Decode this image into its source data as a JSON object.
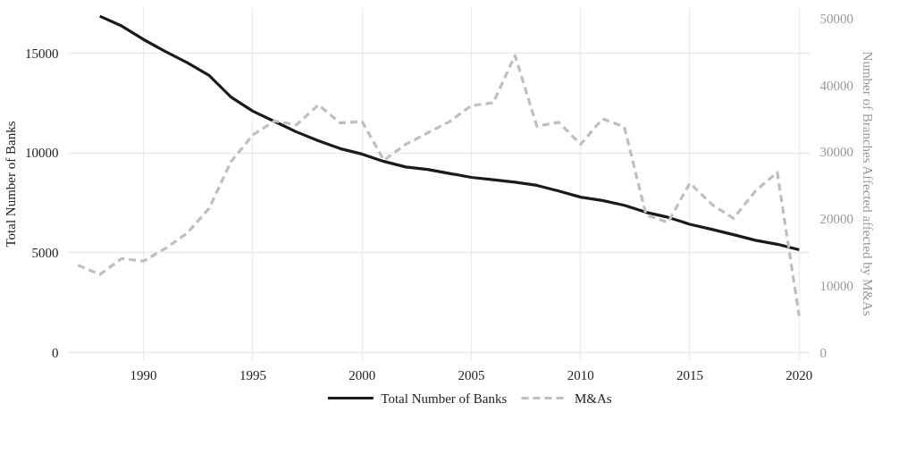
{
  "chart_data": {
    "type": "line",
    "ylabel": "Total Number of Banks",
    "y2label": "Number of Branches Affected affected by M&As",
    "xlim": [
      1986.56,
      2020.5
    ],
    "xticks": [
      1990,
      1995,
      2000,
      2005,
      2010,
      2015,
      2020
    ],
    "ylim": [
      -400,
      17290
    ],
    "yticks": [
      0,
      5000,
      10000,
      15000
    ],
    "y2lim": [
      -1190,
      51670
    ],
    "y2ticks": [
      0,
      10000,
      20000,
      30000,
      40000,
      50000
    ],
    "grid": true,
    "legend": "bottom",
    "series": [
      {
        "name": "Total Number of Banks",
        "color": "#1a1a1a",
        "line_style": "solid",
        "x": [
          1988,
          1989,
          1990,
          1991,
          1992,
          1993,
          1994,
          1995,
          1996,
          1997,
          1998,
          1999,
          2000,
          2001,
          2002,
          2003,
          2004,
          2005,
          2006,
          2007,
          2008,
          2009,
          2010,
          2011,
          2012,
          2013,
          2014,
          2015,
          2016,
          2017,
          2018,
          2019,
          2020
        ],
        "values": [
          16860,
          16370,
          15690,
          15090,
          14530,
          13890,
          12810,
          12100,
          11580,
          11060,
          10620,
          10220,
          9950,
          9580,
          9300,
          9180,
          8980,
          8780,
          8660,
          8540,
          8380,
          8100,
          7790,
          7620,
          7380,
          7030,
          6780,
          6430,
          6180,
          5910,
          5630,
          5430,
          5150
        ]
      },
      {
        "name": "M&As",
        "color": "#bfbfbf",
        "line_style": "dashed",
        "axis": "y2",
        "x": [
          1987,
          1988,
          1989,
          1990,
          1991,
          1992,
          1993,
          1994,
          1995,
          1996,
          1997,
          1998,
          1999,
          2000,
          2001,
          2002,
          2003,
          2004,
          2005,
          2006,
          2007,
          2008,
          2009,
          2010,
          2011,
          2012,
          2013,
          2014,
          2015,
          2016,
          2017,
          2018,
          2019,
          2020
        ],
        "values": [
          13100,
          11700,
          14100,
          13700,
          15600,
          17900,
          21600,
          28600,
          32600,
          34700,
          34100,
          37100,
          34400,
          34600,
          28800,
          31200,
          32900,
          34600,
          37000,
          37400,
          44500,
          33900,
          34500,
          31200,
          35000,
          33800,
          20600,
          19500,
          25400,
          22200,
          20100,
          24200,
          27000,
          5500
        ]
      }
    ]
  }
}
